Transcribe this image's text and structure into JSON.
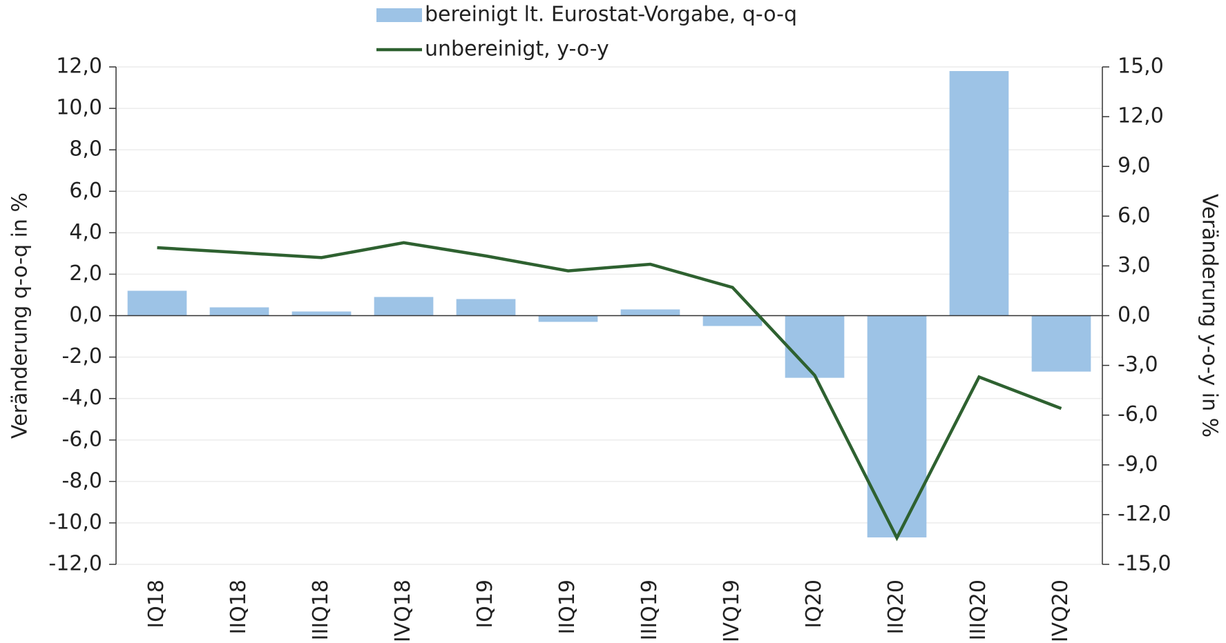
{
  "chart_data": {
    "type": "bar-line",
    "categories": [
      "IQ18",
      "IIQ18",
      "IIIQ18",
      "IVQ18",
      "IQ19",
      "IIQ19",
      "IIIQ19",
      "IVQ19",
      "IQ20",
      "IIQ20",
      "IIIQ20",
      "IVQ20"
    ],
    "series": [
      {
        "name": "bereinigt lt. Eurostat-Vorgabe, q-o-q",
        "type": "bar",
        "color": "#9dc3e6",
        "axis": "y",
        "values": [
          1.2,
          0.4,
          0.2,
          0.9,
          0.8,
          -0.3,
          0.3,
          -0.5,
          -3.0,
          -10.7,
          11.8,
          -2.7
        ]
      },
      {
        "name": "unbereinigt, y-o-y",
        "type": "line",
        "color": "#2e6130",
        "axis": "y2",
        "values": [
          4.1,
          3.8,
          3.5,
          4.4,
          3.6,
          2.7,
          3.1,
          1.7,
          -3.6,
          -13.4,
          -3.7,
          -5.6
        ]
      }
    ],
    "ylabel": "Veränderung q-o-q in %",
    "y2label": "Veränderung y-o-y in %",
    "ylim": [
      -12,
      12
    ],
    "yticks": [
      {
        "value": -12,
        "label": "-12,0"
      },
      {
        "value": -10,
        "label": "-10,0"
      },
      {
        "value": -8,
        "label": "-8,0"
      },
      {
        "value": -6,
        "label": "-6,0"
      },
      {
        "value": -4,
        "label": "-4,0"
      },
      {
        "value": -2,
        "label": "-2,0"
      },
      {
        "value": 0,
        "label": "0,0"
      },
      {
        "value": 2,
        "label": "2,0"
      },
      {
        "value": 4,
        "label": "4,0"
      },
      {
        "value": 6,
        "label": "6,0"
      },
      {
        "value": 8,
        "label": "8,0"
      },
      {
        "value": 10,
        "label": "10,0"
      },
      {
        "value": 12,
        "label": "12,0"
      }
    ],
    "y2lim": [
      -15,
      15
    ],
    "y2ticks": [
      {
        "value": -15,
        "label": "-15,0"
      },
      {
        "value": -12,
        "label": "-12,0"
      },
      {
        "value": -9,
        "label": "-9,0"
      },
      {
        "value": -6,
        "label": "-6,0"
      },
      {
        "value": -3,
        "label": "-3,0"
      },
      {
        "value": 0,
        "label": "0,0"
      },
      {
        "value": 3,
        "label": "3,0"
      },
      {
        "value": 6,
        "label": "6,0"
      },
      {
        "value": 9,
        "label": "9,0"
      },
      {
        "value": 12,
        "label": "12,0"
      },
      {
        "value": 15,
        "label": "15,0"
      }
    ],
    "grid": true,
    "legend": "top"
  }
}
